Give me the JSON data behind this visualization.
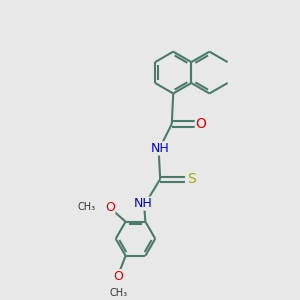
{
  "background_color": "#e8e8e8",
  "bond_color": "#4a7a6a",
  "bond_width": 1.5,
  "atom_colors": {
    "C": "#000000",
    "N": "#0000cc",
    "O": "#dd0000",
    "S": "#aaaa00",
    "H": "#606060"
  },
  "font_size": 8,
  "fig_size": [
    3.0,
    3.0
  ],
  "dpi": 100,
  "xlim": [
    0,
    10
  ],
  "ylim": [
    0,
    10
  ]
}
